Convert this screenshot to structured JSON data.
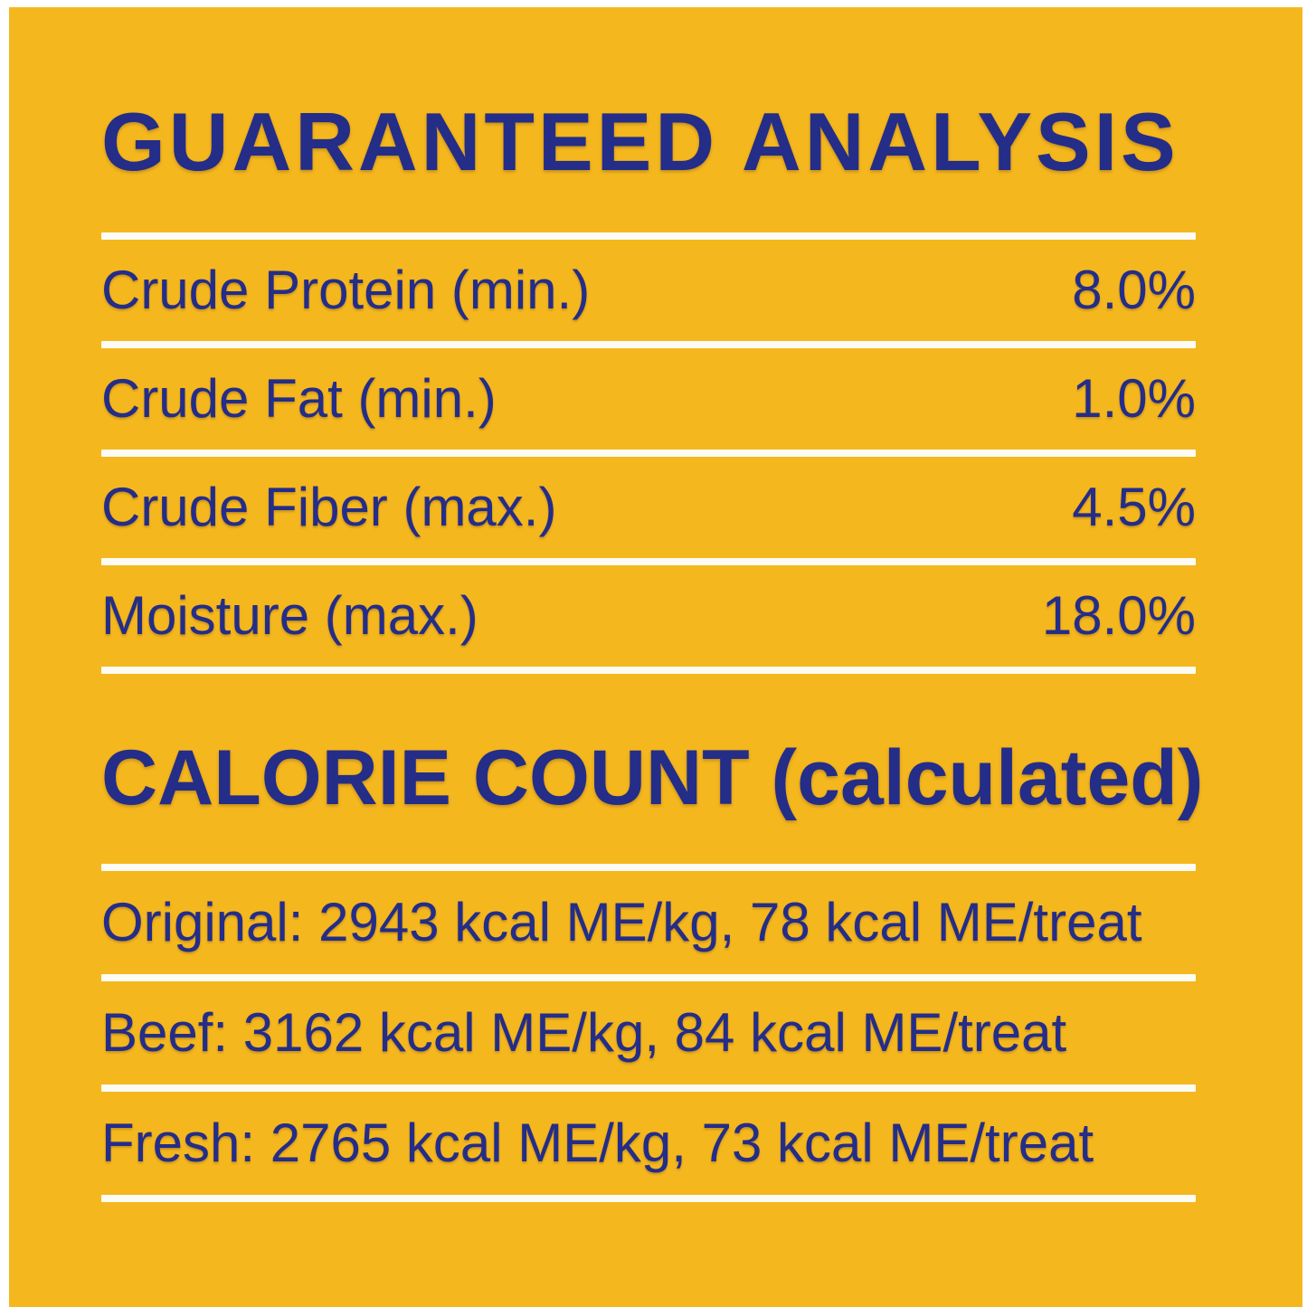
{
  "page": {
    "colors": {
      "background": "#F5B71E",
      "text": "#242D87",
      "divider": "#FCFCF5",
      "frame": "#FFFFFF"
    }
  },
  "guaranteed_analysis": {
    "title": "GUARANTEED ANALYSIS",
    "rows": [
      {
        "label": "Crude Protein (min.)",
        "value": "8.0%"
      },
      {
        "label": "Crude Fat (min.)",
        "value": "1.0%"
      },
      {
        "label": "Crude Fiber (max.)",
        "value": "4.5%"
      },
      {
        "label": "Moisture (max.)",
        "value": "18.0%"
      }
    ]
  },
  "calorie_count": {
    "title": "CALORIE COUNT (calculated)",
    "rows": [
      {
        "text": "Original: 2943 kcal ME/kg, 78 kcal ME/treat"
      },
      {
        "text": "Beef: 3162 kcal ME/kg, 84 kcal ME/treat"
      },
      {
        "text": "Fresh: 2765 kcal ME/kg, 73 kcal ME/treat"
      }
    ]
  }
}
